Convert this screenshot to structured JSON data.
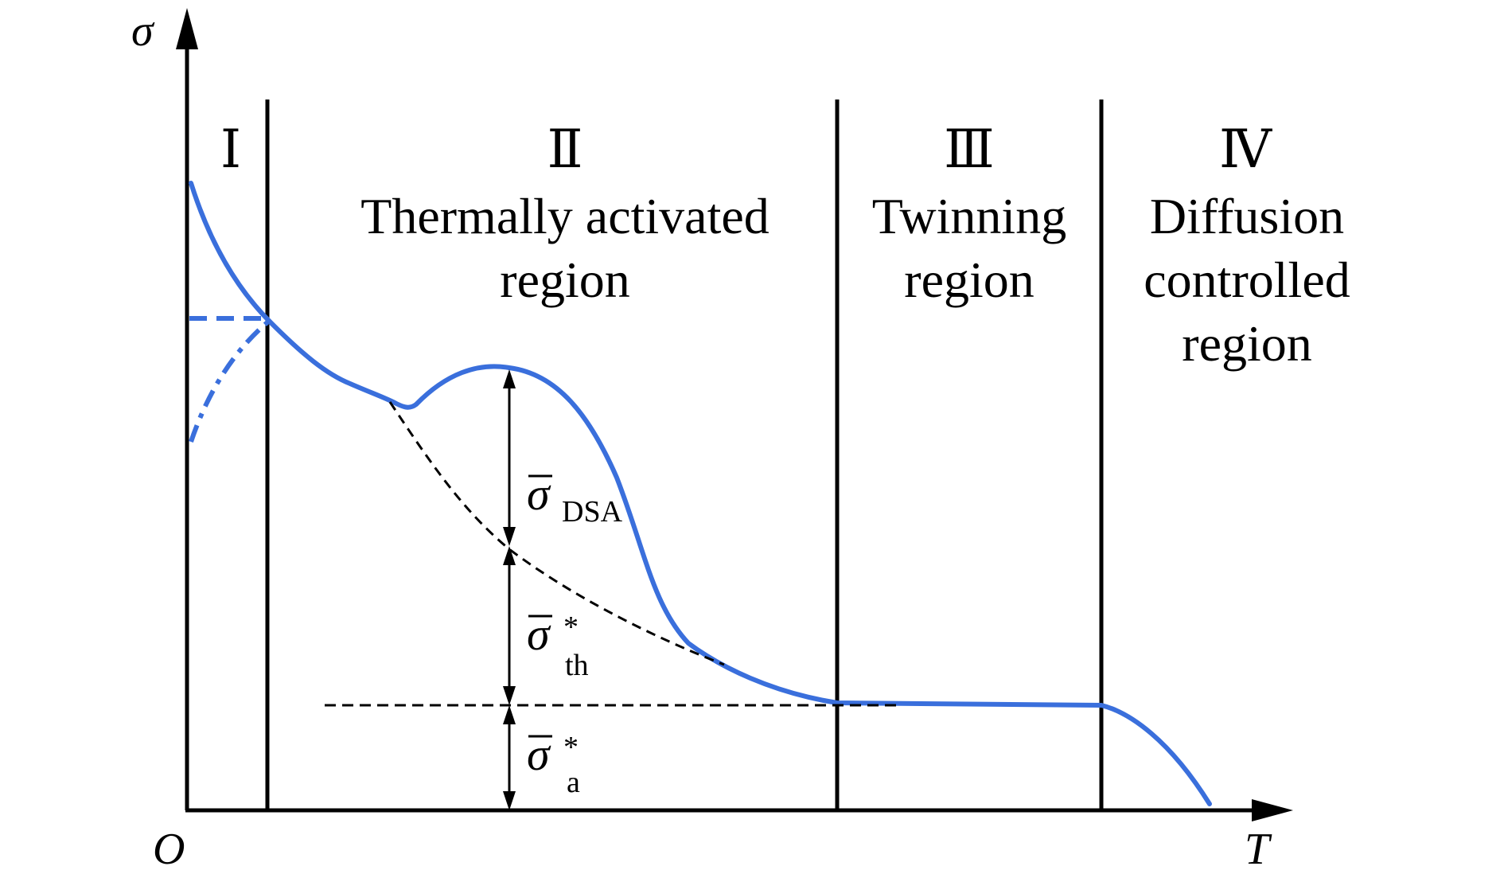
{
  "axes": {
    "y_label": "σ",
    "x_label": "T",
    "origin_label": "O"
  },
  "regions": [
    {
      "numeral": "Ⅰ",
      "lines": []
    },
    {
      "numeral": "Ⅱ",
      "lines": [
        "Thermally activated",
        "region"
      ]
    },
    {
      "numeral": "Ⅲ",
      "lines": [
        "Twinning",
        "region"
      ]
    },
    {
      "numeral": "Ⅳ",
      "lines": [
        "Diffusion",
        "controlled",
        "region"
      ]
    }
  ],
  "components": {
    "dsa": {
      "symbol": "σ",
      "sub": "DSA",
      "sup": ""
    },
    "th": {
      "symbol": "σ",
      "sub": "th",
      "sup": "*"
    },
    "athermal": {
      "symbol": "σ",
      "sub": "a",
      "sup": "*"
    }
  },
  "colors": {
    "curve": "#3a6fdc",
    "axes": "#000000",
    "dashed": "#000000"
  }
}
